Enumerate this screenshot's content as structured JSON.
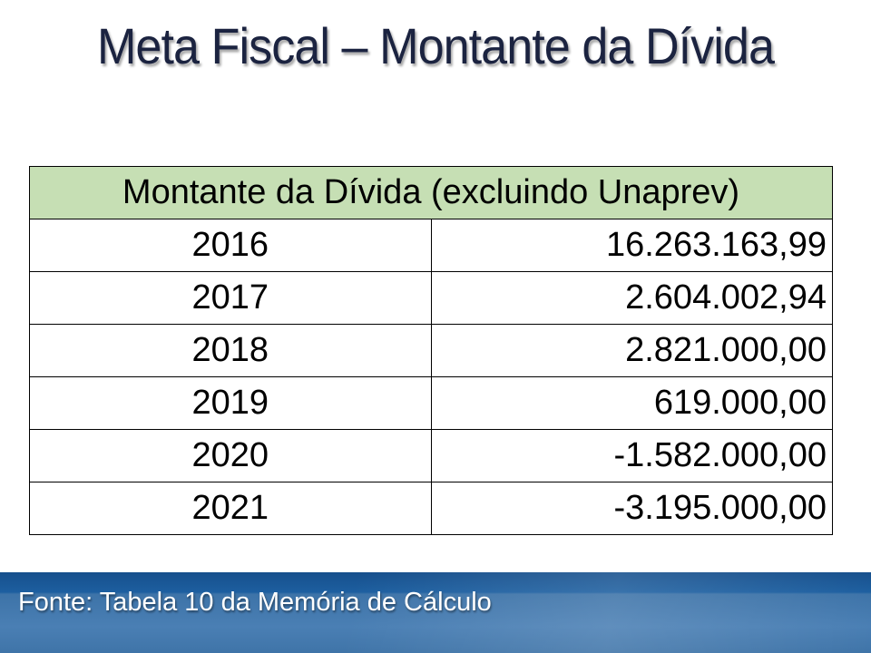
{
  "slide": {
    "title": "Meta Fiscal – Montante da Dívida",
    "footer": "Fonte: Tabela 10 da Memória de Cálculo"
  },
  "table": {
    "header": "Montante da Dívida (excluindo Unaprev)",
    "rows": [
      {
        "year": "2016",
        "value": "16.263.163,99"
      },
      {
        "year": "2017",
        "value": "2.604.002,94"
      },
      {
        "year": "2018",
        "value": "2.821.000,00"
      },
      {
        "year": "2019",
        "value": "619.000,00"
      },
      {
        "year": "2020",
        "value": "-1.582.000,00"
      },
      {
        "year": "2021",
        "value": "-3.195.000,00"
      }
    ]
  },
  "colors": {
    "title": "#1b2340",
    "header_bg": "#c6dfb4",
    "footer_bg": "#3f74a8"
  }
}
